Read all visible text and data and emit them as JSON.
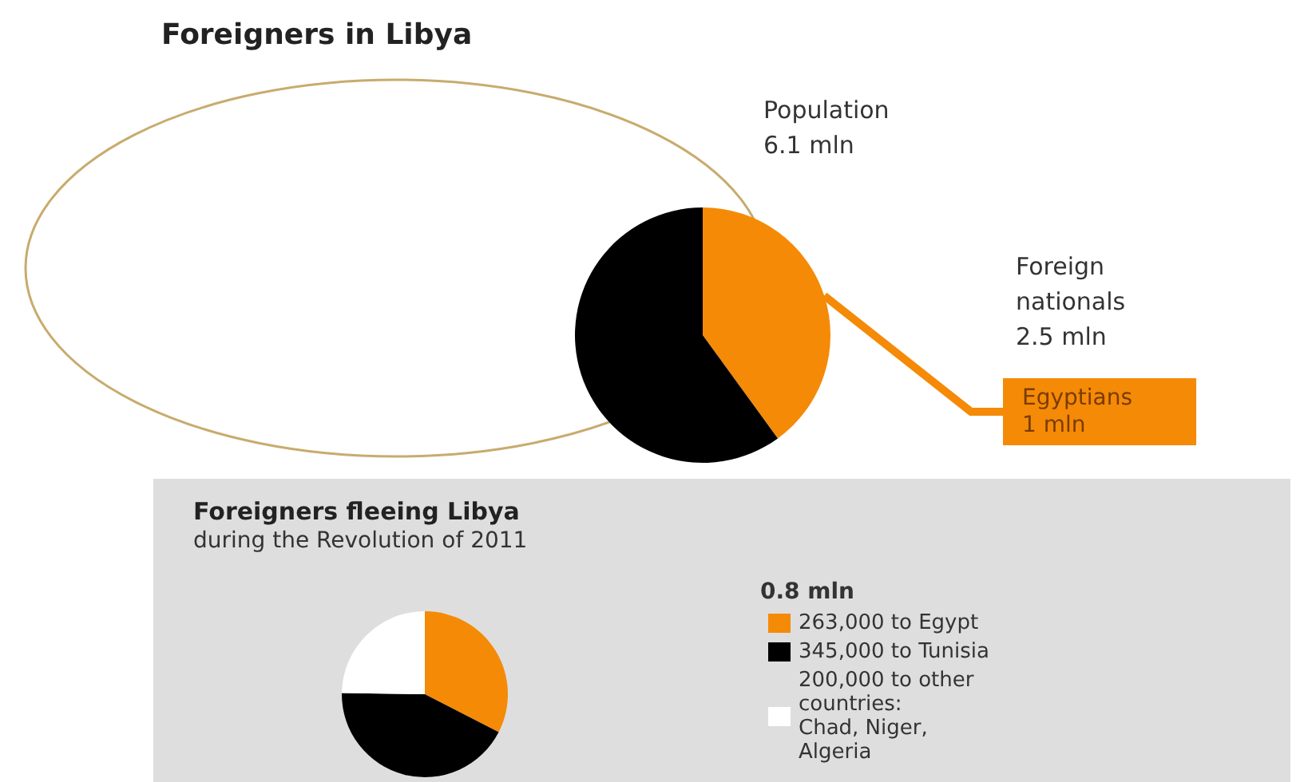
{
  "chart_data": [
    {
      "type": "pie",
      "title": "Foreigners in Libya",
      "categories": [
        "Egyptians",
        null
      ],
      "values": [
        1,
        1.5
      ],
      "colors": [
        "#f58a07",
        "#000000"
      ],
      "value_labels": [
        "1 mln",
        null
      ],
      "annotations": [
        "Population\n6.1 mln",
        "Foreign\nnationals\n2.5 mln"
      ],
      "legend": false
    },
    {
      "type": "pie",
      "title": "Foreigners fleeing Libya",
      "subtitle": "during the Revolution of 2011",
      "categories": [
        "263,000 to Egypt",
        "345,000 to Tunisia",
        "200,000 to other\ncountries:\nChad, Niger,\nAlgeria"
      ],
      "values": [
        263000,
        345000,
        200000
      ],
      "colors": [
        "#f58a07",
        "#000000",
        "#ffffff"
      ],
      "annotations": [
        "0.8 mln"
      ],
      "legend": "right"
    }
  ]
}
